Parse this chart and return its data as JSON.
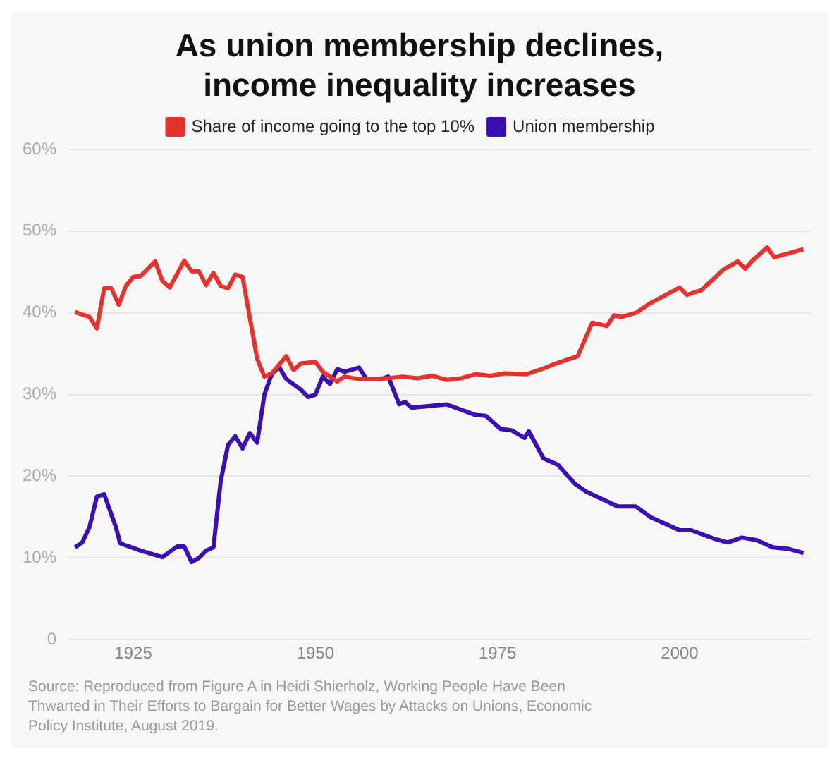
{
  "chart_data": {
    "type": "line",
    "title": "As union membership declines,\nincome inequality increases",
    "series": [
      {
        "name": "Share of income going to the top 10%",
        "color": "#e5322d",
        "x": [
          1917,
          1919,
          1920,
          1921,
          1922,
          1923,
          1924,
          1925,
          1926,
          1928,
          1929,
          1930,
          1932,
          1933,
          1934,
          1935,
          1936,
          1937,
          1938,
          1939,
          1940,
          1941,
          1942,
          1943,
          1944,
          1946,
          1947,
          1948,
          1950,
          1951,
          1953,
          1954,
          1956,
          1959,
          1962,
          1964,
          1966,
          1968,
          1970,
          1972,
          1974,
          1976,
          1979,
          1981,
          1983,
          1986,
          1988,
          1990,
          1991,
          1992,
          1994,
          1996,
          2000,
          2001,
          2003,
          2006,
          2008,
          2009,
          2010,
          2012,
          2013,
          2017
        ],
        "values": [
          40.1,
          39.5,
          38.1,
          43,
          43,
          41,
          43.3,
          44.4,
          44.5,
          46.3,
          43.9,
          43.1,
          46.4,
          45.1,
          45.1,
          43.4,
          44.9,
          43.3,
          43,
          44.7,
          44.4,
          39.4,
          34.4,
          32.2,
          32.6,
          34.7,
          33,
          33.8,
          34,
          32.8,
          31.6,
          32.2,
          31.9,
          31.9,
          32.2,
          32,
          32.3,
          31.8,
          32,
          32.5,
          32.3,
          32.6,
          32.5,
          33.1,
          33.8,
          34.7,
          38.8,
          38.4,
          39.7,
          39.5,
          40,
          41.2,
          43.1,
          42.2,
          42.8,
          45.3,
          46.3,
          45.4,
          46.4,
          48,
          46.8,
          47.8
        ]
      },
      {
        "name": "Union membership",
        "color": "#3a10b0",
        "x": [
          1917,
          1918,
          1919,
          1920,
          1921,
          1922.6,
          1923.2,
          1926,
          1929,
          1931,
          1932,
          1933,
          1934,
          1935,
          1936,
          1937,
          1938,
          1939,
          1940,
          1941,
          1942,
          1943,
          1944,
          1945,
          1946,
          1948,
          1949,
          1950,
          1951,
          1952,
          1953,
          1954,
          1956,
          1957,
          1959,
          1960,
          1961.5,
          1962.3,
          1963.2,
          1968,
          1972,
          1973.4,
          1975.4,
          1977,
          1978.7,
          1979.3,
          1981.3,
          1983.3,
          1985.6,
          1987.2,
          1991.5,
          1994,
          1996,
          2000,
          2001.6,
          2004.6,
          2006.6,
          2008.5,
          2010.5,
          2012.8,
          2015,
          2017
        ],
        "values": [
          11.3,
          11.9,
          13.8,
          17.5,
          17.8,
          13.8,
          11.8,
          10.9,
          10.1,
          11.4,
          11.4,
          9.5,
          10,
          10.9,
          11.3,
          19.4,
          23.8,
          24.9,
          23.4,
          25.3,
          24.1,
          30,
          32.5,
          33.4,
          31.9,
          30.6,
          29.7,
          30,
          32.2,
          31.3,
          33.1,
          32.8,
          33.3,
          31.9,
          31.9,
          32.2,
          28.8,
          29.1,
          28.4,
          28.8,
          27.5,
          27.4,
          25.8,
          25.6,
          24.7,
          25.5,
          22.2,
          21.4,
          19.1,
          18.1,
          16.3,
          16.3,
          15,
          13.4,
          13.4,
          12.4,
          11.9,
          12.5,
          12.2,
          11.3,
          11.1,
          10.6
        ]
      }
    ],
    "xlim": [
      1916,
      2018
    ],
    "xticks": [
      1925,
      1950,
      1975,
      2000
    ],
    "ylim": [
      0,
      60
    ],
    "yticks": [
      {
        "value": 0,
        "label": "0"
      },
      {
        "value": 10,
        "label": "10%"
      },
      {
        "value": 20,
        "label": "20%"
      },
      {
        "value": 30,
        "label": "30%"
      },
      {
        "value": 40,
        "label": "40%"
      },
      {
        "value": 50,
        "label": "50%"
      },
      {
        "value": 60,
        "label": "60%"
      }
    ],
    "grid": "y",
    "legend": "top",
    "marker": "none",
    "line_style": "solid",
    "annotations": [
      "Source: Reproduced from Figure A in Heidi Shierholz, Working People Have Been Thwarted in Their Efforts to Bargain for Better Wages by Attacks on Unions, Economic Policy Institute, August 2019."
    ]
  }
}
